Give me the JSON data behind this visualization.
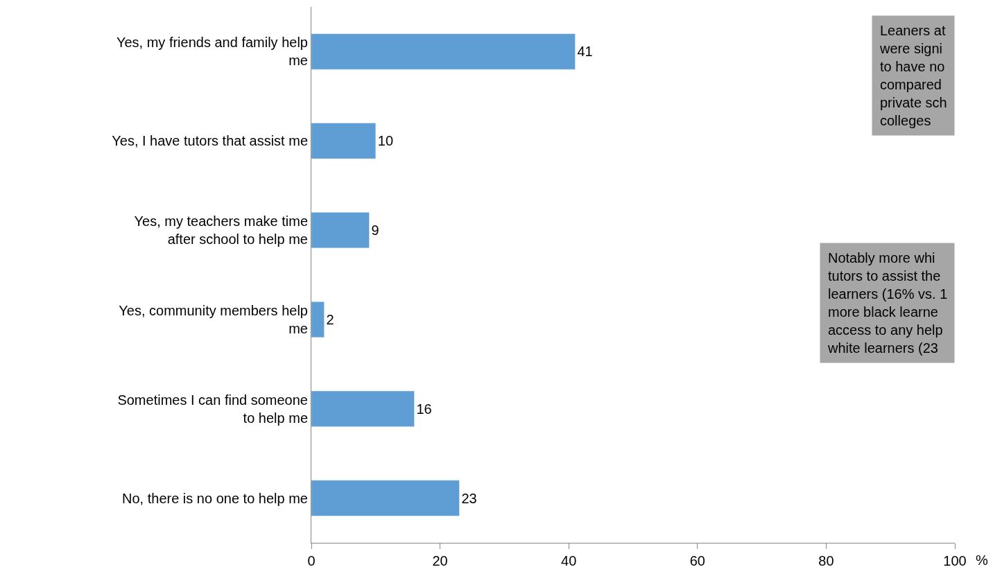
{
  "chart_data": {
    "type": "bar",
    "orientation": "horizontal",
    "categories": [
      "Yes, my friends and family help\nme",
      "Yes, I have tutors that assist me",
      "Yes, my teachers make time\nafter school to help me",
      "Yes, community members help\nme",
      "Sometimes I can find someone\nto help me",
      "No, there is no one to help me"
    ],
    "values": [
      41,
      10,
      9,
      2,
      16,
      23
    ],
    "color": "#5f9ed4",
    "data_labels": true,
    "xlabel": "%",
    "xlim": [
      0,
      100
    ],
    "xticks": [
      0,
      20,
      40,
      60,
      80,
      100
    ],
    "legend": false,
    "annotations": [
      "Leaners at\nwere signi\nto have no\ncompared\nprivate sch\ncolleges",
      "Notably more whi\ntutors to assist the\nlearners (16% vs. 1\nmore black learne\naccess to any help\nwhite learners (23"
    ]
  }
}
